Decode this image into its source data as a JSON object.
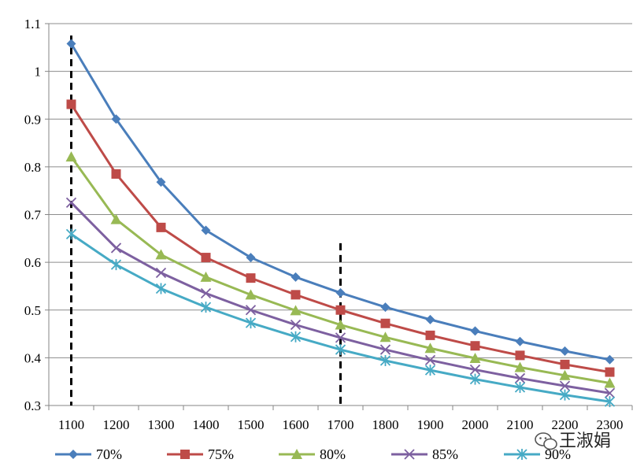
{
  "chart_data": {
    "type": "line",
    "title": "",
    "xlabel": "",
    "ylabel": "",
    "x": [
      1100,
      1200,
      1300,
      1400,
      1500,
      1600,
      1700,
      1800,
      1900,
      2000,
      2100,
      2200,
      2300
    ],
    "ylim": [
      0.3,
      1.1
    ],
    "yticks": [
      "0.3",
      "0.4",
      "0.5",
      "0.6",
      "0.7",
      "0.8",
      "0.9",
      "1",
      "1.1"
    ],
    "grid": "horizontal",
    "legend_position": "bottom",
    "series": [
      {
        "name": "70%",
        "color": "#4a7ebb",
        "marker": "diamond",
        "values": [
          1.058,
          0.9,
          0.768,
          0.667,
          0.61,
          0.569,
          0.536,
          0.506,
          0.48,
          0.456,
          0.434,
          0.414,
          0.396
        ]
      },
      {
        "name": "75%",
        "color": "#be4b48",
        "marker": "square",
        "values": [
          0.931,
          0.785,
          0.673,
          0.61,
          0.567,
          0.532,
          0.5,
          0.472,
          0.447,
          0.425,
          0.405,
          0.386,
          0.37
        ]
      },
      {
        "name": "80%",
        "color": "#98b954",
        "marker": "triangle",
        "values": [
          0.821,
          0.69,
          0.616,
          0.569,
          0.532,
          0.499,
          0.469,
          0.443,
          0.42,
          0.399,
          0.38,
          0.363,
          0.347
        ]
      },
      {
        "name": "85%",
        "color": "#7d60a0",
        "marker": "x",
        "values": [
          0.725,
          0.63,
          0.578,
          0.535,
          0.5,
          0.469,
          0.442,
          0.417,
          0.395,
          0.375,
          0.357,
          0.341,
          0.326
        ]
      },
      {
        "name": "90%",
        "color": "#46aac5",
        "marker": "star",
        "values": [
          0.659,
          0.595,
          0.545,
          0.506,
          0.473,
          0.444,
          0.417,
          0.394,
          0.374,
          0.355,
          0.338,
          0.322,
          0.308
        ]
      }
    ],
    "annotations": [
      {
        "type": "dashed-vertical-line",
        "x": 1100,
        "y_top": 1.075,
        "y_bottom": 0.3
      },
      {
        "type": "dashed-vertical-line",
        "x": 1700,
        "y_top": 0.64,
        "y_bottom": 0.3
      }
    ]
  },
  "watermark": {
    "text": "王淑娟",
    "icon": "wechat-icon"
  }
}
